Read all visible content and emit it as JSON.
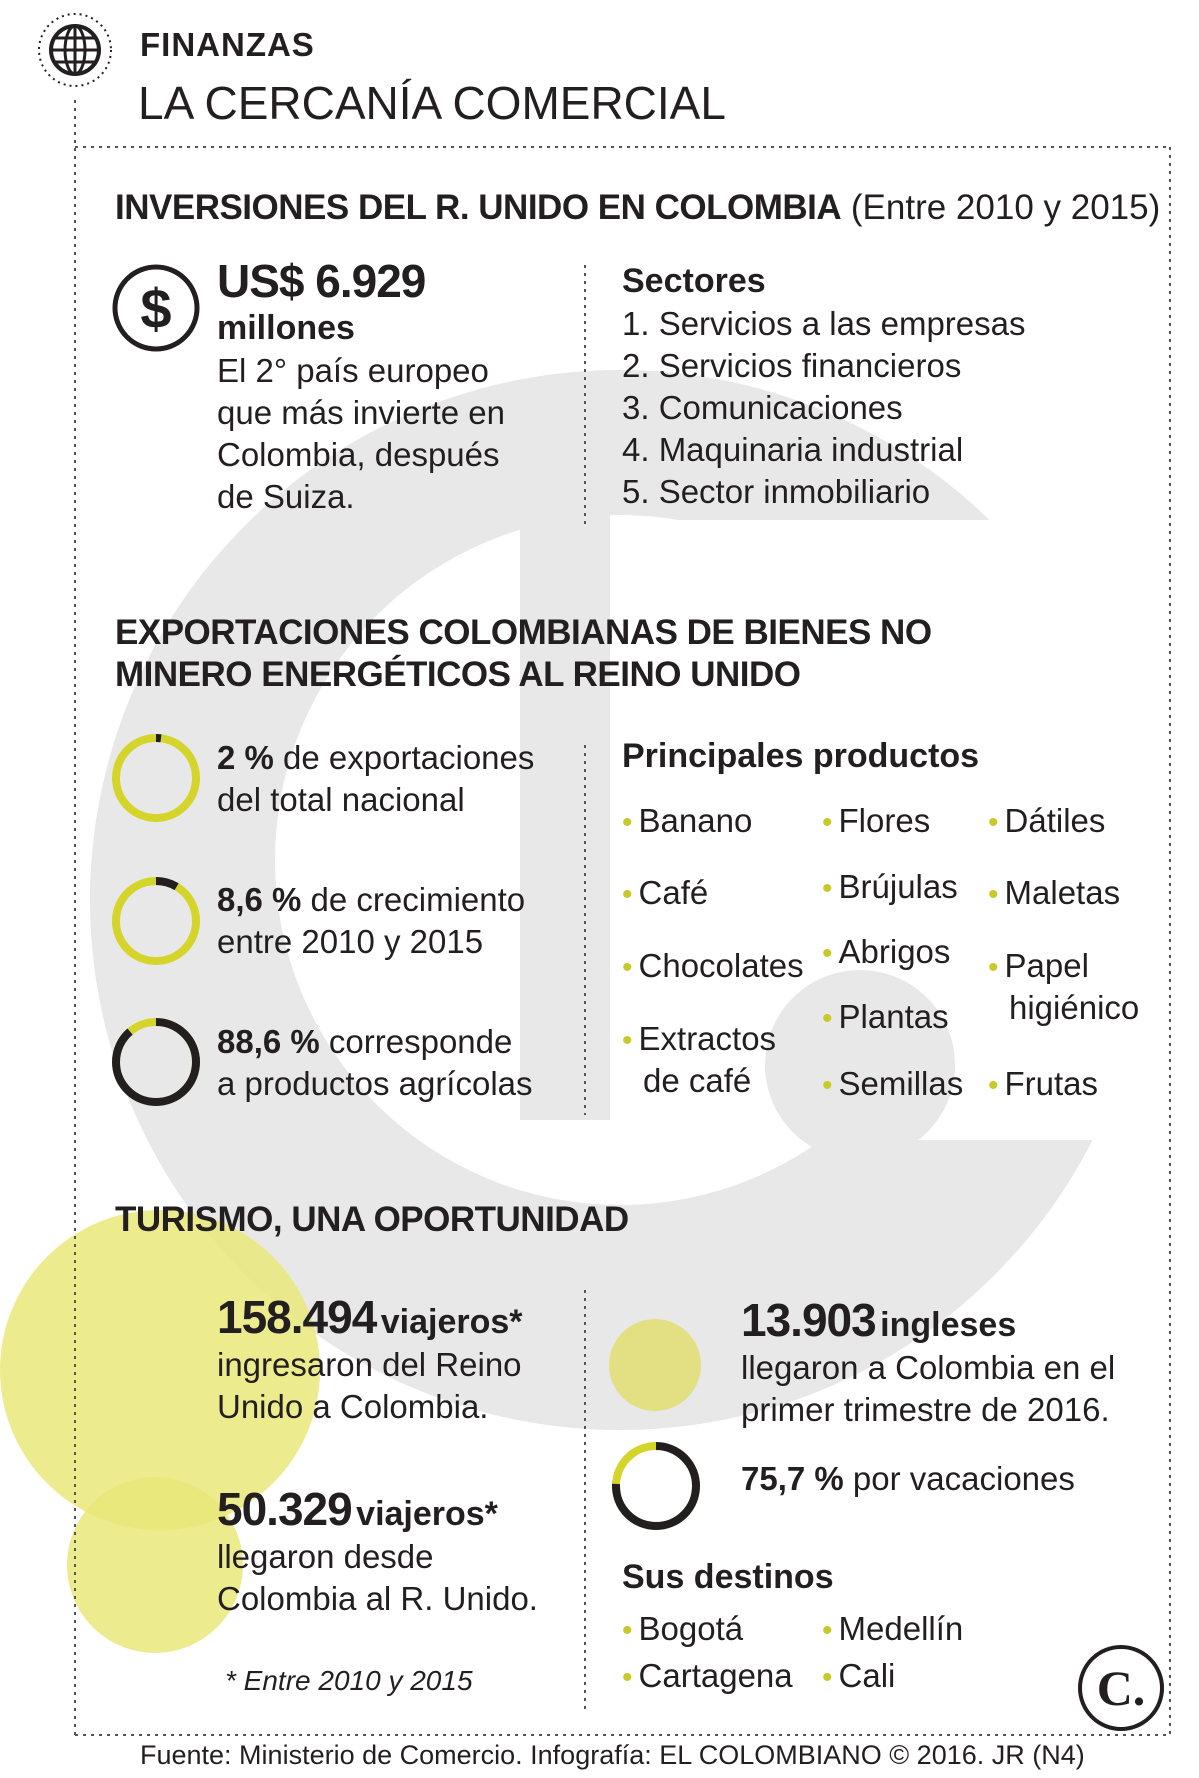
{
  "header": {
    "section": "FINANZAS",
    "title": "LA CERCANÍA COMERCIAL"
  },
  "investments": {
    "heading_bold": "INVERSIONES DEL R. UNIDO EN COLOMBIA",
    "heading_note": "(Entre 2010 y 2015)",
    "amount": "US$ 6.929",
    "unit": "millones",
    "description": [
      "El 2° país europeo",
      "que más invierte en",
      "Colombia, después",
      "de Suiza."
    ],
    "sectors_title": "Sectores",
    "sectors": [
      "1. Servicios a las empresas",
      "2. Servicios financieros",
      "3. Comunicaciones",
      "4. Maquinaria industrial",
      "5. Sector inmobiliario"
    ]
  },
  "exports": {
    "heading": [
      "EXPORTACIONES COLOMBIANAS DE BIENES NO",
      "MINERO ENERGÉTICOS AL REINO UNIDO"
    ],
    "stats": [
      {
        "value": "2 %",
        "line1": " de exportaciones",
        "line2": "del total nacional",
        "percent": 2
      },
      {
        "value": "8,6 %",
        "line1": " de crecimiento",
        "line2": "entre 2010 y 2015",
        "percent": 8.6
      },
      {
        "value": "88,6 %",
        "line1": " corresponde",
        "line2": "a productos agrícolas",
        "percent": 88.6
      }
    ],
    "products_title": "Principales productos",
    "products_col1": [
      "Banano",
      "Café",
      "Chocolates",
      "Extractos",
      "de café"
    ],
    "products_col2": [
      "Flores",
      "Brújulas",
      "Abrigos",
      "Plantas",
      "Semillas"
    ],
    "products_col3": [
      "Dátiles",
      "Maletas",
      "Papel",
      "higiénico",
      "Frutas"
    ]
  },
  "tourism": {
    "heading": "TURISMO, UNA OPORTUNIDAD",
    "stat1": {
      "number": "158.494",
      "label": "viajeros*",
      "line1": "ingresaron del Reino",
      "line2": "Unido a Colombia."
    },
    "stat2": {
      "number": "50.329",
      "label": "viajeros*",
      "line1": "llegaron desde",
      "line2": "Colombia al R. Unido."
    },
    "footnote": "* Entre 2010 y 2015",
    "english": {
      "number": "13.903",
      "label": "ingleses",
      "line1": "llegaron a Colombia en el",
      "line2": "primer trimestre de 2016."
    },
    "vacation": {
      "value": "75,7 %",
      "text": " por vacaciones",
      "percent": 75.7
    },
    "destinations_title": "Sus destinos",
    "destinations_col1": [
      "Bogotá",
      "Cartagena"
    ],
    "destinations_col2": [
      "Medellín",
      "Cali"
    ]
  },
  "logo_letter": "C.",
  "footer": "Fuente: Ministerio de Comercio. Infografía: EL COLOMBIANO © 2016. JR (N4)",
  "colors": {
    "yellow": "#d4d42a",
    "dark": "#231f20",
    "watermark": "#e7e7e7",
    "bubble": "#e9e77a"
  }
}
